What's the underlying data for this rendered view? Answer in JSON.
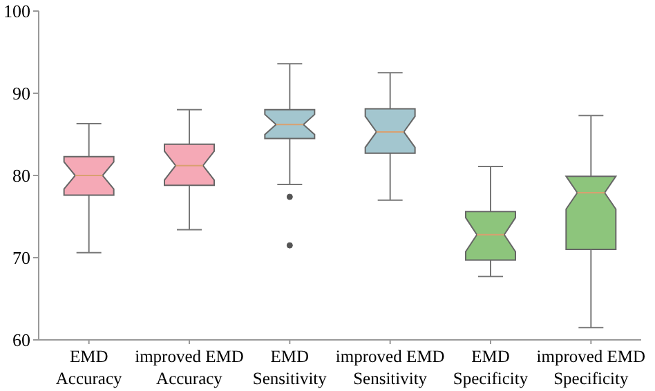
{
  "chart_data": {
    "type": "box",
    "categories": [
      "EMD Accuracy",
      "improved EMD Accuracy",
      "EMD Sensitivity",
      "improved EMD Sensitivity",
      "EMD Specificity",
      "improved EMD Specificity"
    ],
    "colors": [
      "#f5a9b6",
      "#f5a9b6",
      "#a3c6cf",
      "#a3c6cf",
      "#8dc57c",
      "#8dc57c"
    ],
    "boxes": [
      {
        "low": 70.6,
        "q1": 77.6,
        "median": 80,
        "q3": 82.3,
        "high": 86.3
      },
      {
        "low": 73.4,
        "q1": 78.8,
        "median": 81.2,
        "q3": 83.8,
        "high": 88
      },
      {
        "low": 78.9,
        "q1": 84.5,
        "median": 86.2,
        "q3": 88,
        "high": 93.6,
        "outliers": [
          77.4,
          71.5
        ]
      },
      {
        "low": 77,
        "q1": 82.7,
        "median": 85.3,
        "q3": 88.1,
        "high": 92.5
      },
      {
        "low": 67.7,
        "q1": 69.7,
        "median": 72.8,
        "q3": 75.6,
        "high": 81.1
      },
      {
        "low": 61.5,
        "q1": 71,
        "median": 77.9,
        "q3": 79.9,
        "high": 87.3
      }
    ],
    "ylim": [
      60,
      100
    ],
    "yticks": [
      60,
      70,
      80,
      90,
      100
    ]
  }
}
